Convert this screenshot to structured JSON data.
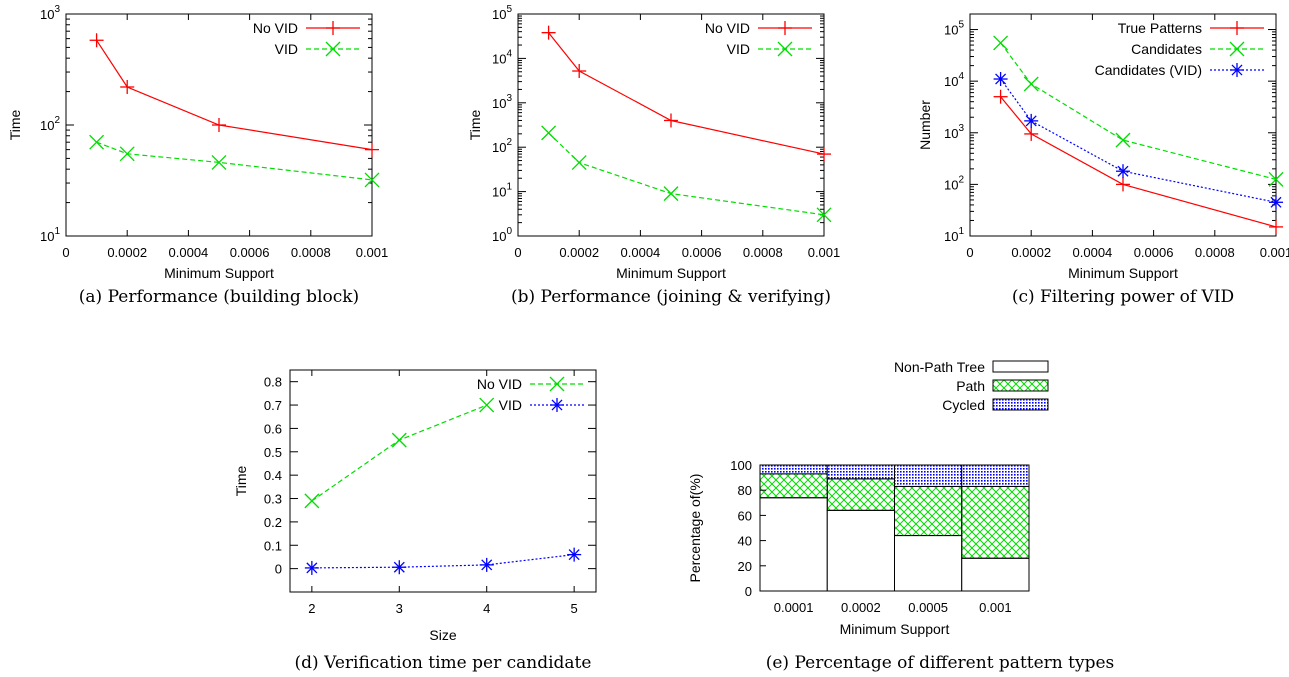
{
  "colors": {
    "red": "#ff0000",
    "green": "#00dd00",
    "blue": "#0000ff"
  },
  "chart_data": [
    {
      "type": "line",
      "caption": "(a) Performance (building block)",
      "xlabel": "Minimum Support",
      "ylabel": "Time",
      "yscale": "log",
      "xlim": [
        0,
        0.001
      ],
      "ylim": [
        10,
        1000
      ],
      "xticks": [
        0,
        0.0002,
        0.0004,
        0.0006,
        0.0008,
        0.001
      ],
      "xtick_labels": [
        "0",
        "0.0002",
        "0.0004",
        "0.0006",
        "0.0008",
        "0.001"
      ],
      "yticks": [
        10,
        100,
        1000
      ],
      "ytick_labels": [
        {
          "base": "10",
          "exp": "1"
        },
        {
          "base": "10",
          "exp": "2"
        },
        {
          "base": "10",
          "exp": "3"
        }
      ],
      "legend_position": "top-right",
      "series": [
        {
          "name": "No VID",
          "color": "#ff0000",
          "marker": "plus",
          "dash": "solid",
          "x": [
            0.0001,
            0.0002,
            0.0005,
            0.001
          ],
          "y": [
            580,
            220,
            100,
            60
          ]
        },
        {
          "name": "VID",
          "color": "#00dd00",
          "marker": "x",
          "dash": "dashed",
          "x": [
            0.0001,
            0.0002,
            0.0005,
            0.001
          ],
          "y": [
            70,
            55,
            46,
            32
          ]
        }
      ]
    },
    {
      "type": "line",
      "caption": "(b) Performance (joining & verifying)",
      "xlabel": "Minimum Support",
      "ylabel": "Time",
      "yscale": "log",
      "xlim": [
        0,
        0.001
      ],
      "ylim": [
        1,
        100000
      ],
      "xticks": [
        0,
        0.0002,
        0.0004,
        0.0006,
        0.0008,
        0.001
      ],
      "xtick_labels": [
        "0",
        "0.0002",
        "0.0004",
        "0.0006",
        "0.0008",
        "0.001"
      ],
      "yticks": [
        1,
        10,
        100,
        1000,
        10000,
        100000
      ],
      "ytick_labels": [
        {
          "base": "10",
          "exp": "0"
        },
        {
          "base": "10",
          "exp": "1"
        },
        {
          "base": "10",
          "exp": "2"
        },
        {
          "base": "10",
          "exp": "3"
        },
        {
          "base": "10",
          "exp": "4"
        },
        {
          "base": "10",
          "exp": "5"
        }
      ],
      "legend_position": "top-right",
      "series": [
        {
          "name": "No VID",
          "color": "#ff0000",
          "marker": "plus",
          "dash": "solid",
          "x": [
            0.0001,
            0.0002,
            0.0005,
            0.001
          ],
          "y": [
            38000,
            5200,
            400,
            70
          ]
        },
        {
          "name": "VID",
          "color": "#00dd00",
          "marker": "x",
          "dash": "dashed",
          "x": [
            0.0001,
            0.0002,
            0.0005,
            0.001
          ],
          "y": [
            210,
            45,
            9,
            3
          ]
        }
      ]
    },
    {
      "type": "line",
      "caption": "(c) Filtering power of VID",
      "xlabel": "Minimum Support",
      "ylabel": "Number",
      "yscale": "log",
      "xlim": [
        0,
        0.001
      ],
      "ylim": [
        10,
        200000
      ],
      "xticks": [
        0,
        0.0002,
        0.0004,
        0.0006,
        0.0008,
        0.001
      ],
      "xtick_labels": [
        "0",
        "0.0002",
        "0.0004",
        "0.0006",
        "0.0008",
        "0.001"
      ],
      "yticks": [
        10,
        100,
        1000,
        10000,
        100000
      ],
      "ytick_labels": [
        {
          "base": "10",
          "exp": "1"
        },
        {
          "base": "10",
          "exp": "2"
        },
        {
          "base": "10",
          "exp": "3"
        },
        {
          "base": "10",
          "exp": "4"
        },
        {
          "base": "10",
          "exp": "5"
        }
      ],
      "legend_position": "top-right",
      "series": [
        {
          "name": "True Patterns",
          "color": "#ff0000",
          "marker": "plus",
          "dash": "solid",
          "x": [
            0.0001,
            0.0002,
            0.0005,
            0.001
          ],
          "y": [
            5000,
            950,
            100,
            15
          ]
        },
        {
          "name": "Candidates",
          "color": "#00dd00",
          "marker": "x",
          "dash": "dashed",
          "x": [
            0.0001,
            0.0002,
            0.0005,
            0.001
          ],
          "y": [
            55000,
            8800,
            720,
            125
          ]
        },
        {
          "name": "Candidates (VID)",
          "color": "#0000ff",
          "marker": "star",
          "dash": "dotted",
          "x": [
            0.0001,
            0.0002,
            0.0005,
            0.001
          ],
          "y": [
            11000,
            1700,
            180,
            45
          ]
        }
      ]
    },
    {
      "type": "line",
      "caption": "(d) Verification time per candidate",
      "xlabel": "Size",
      "ylabel": "Time",
      "yscale": "linear",
      "xlim": [
        1.75,
        5.25
      ],
      "ylim": [
        -0.1,
        0.85
      ],
      "xticks": [
        2,
        3,
        4,
        5
      ],
      "xtick_labels": [
        "2",
        "3",
        "4",
        "5"
      ],
      "yticks": [
        0,
        0.1,
        0.2,
        0.3,
        0.4,
        0.5,
        0.6,
        0.7,
        0.8
      ],
      "ytick_labels": [
        "0",
        "0.1",
        "0.2",
        "0.3",
        "0.4",
        "0.5",
        "0.6",
        "0.7",
        "0.8"
      ],
      "legend_position": "top-right",
      "series": [
        {
          "name": "No VID",
          "color": "#00dd00",
          "marker": "x",
          "dash": "dashed",
          "x": [
            2,
            3,
            4
          ],
          "y": [
            0.29,
            0.55,
            0.7
          ]
        },
        {
          "name": "VID",
          "color": "#0000ff",
          "marker": "star",
          "dash": "dotted",
          "x": [
            2,
            3,
            4,
            5
          ],
          "y": [
            0.003,
            0.006,
            0.016,
            0.06
          ]
        }
      ]
    },
    {
      "type": "bar",
      "stacked": true,
      "caption": "(e) Percentage of different pattern types",
      "xlabel": "Minimum Support",
      "ylabel": "Percentage of(%)",
      "ylim": [
        0,
        100
      ],
      "yticks": [
        0,
        20,
        40,
        60,
        80,
        100
      ],
      "ytick_labels": [
        "0",
        "20",
        "40",
        "60",
        "80",
        "100"
      ],
      "categories": [
        "0.0001",
        "0.0002",
        "0.0005",
        "0.001"
      ],
      "legend_position": "top",
      "series": [
        {
          "name": "Non-Path Tree",
          "pattern": "empty",
          "values": [
            74,
            64,
            44,
            26
          ]
        },
        {
          "name": "Path",
          "pattern": "crosshatch-green",
          "values": [
            19,
            25,
            39,
            57
          ]
        },
        {
          "name": "Cycled",
          "pattern": "dots-blue",
          "values": [
            7,
            11,
            17,
            17
          ]
        }
      ]
    }
  ]
}
